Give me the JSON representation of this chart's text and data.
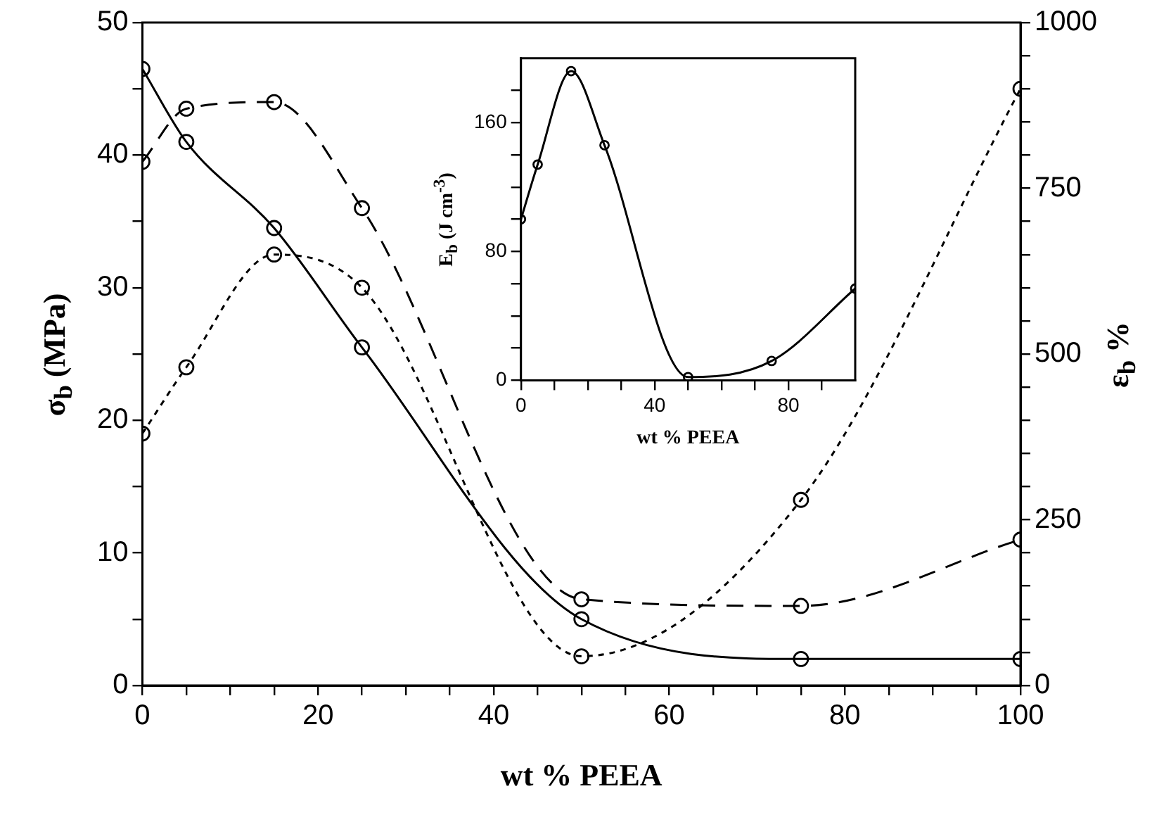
{
  "chart_data": [
    {
      "type": "line",
      "xlabel": "wt % PEEA",
      "ylabel": "σ$_{b}$ (MPa)",
      "y2label": "ε$_{b}$ %",
      "marker": "circle",
      "grid": false,
      "legend": false,
      "xlim": [
        0,
        100
      ],
      "xticks": [
        0,
        {
          "value": 5,
          "label": null
        },
        {
          "value": 10,
          "label": null
        },
        {
          "value": 15,
          "label": null
        },
        20,
        {
          "value": 25,
          "label": null
        },
        {
          "value": 30,
          "label": null
        },
        {
          "value": 35,
          "label": null
        },
        40,
        {
          "value": 45,
          "label": null
        },
        {
          "value": 50,
          "label": null
        },
        {
          "value": 55,
          "label": null
        },
        60,
        {
          "value": 65,
          "label": null
        },
        {
          "value": 70,
          "label": null
        },
        {
          "value": 75,
          "label": null
        },
        80,
        {
          "value": 85,
          "label": null
        },
        {
          "value": 90,
          "label": null
        },
        {
          "value": 95,
          "label": null
        },
        100
      ],
      "ylim": [
        0,
        50
      ],
      "yticks": [
        0,
        {
          "value": 5,
          "label": null
        },
        10,
        {
          "value": 15,
          "label": null
        },
        20,
        {
          "value": 25,
          "label": null
        },
        30,
        {
          "value": 35,
          "label": null
        },
        40,
        {
          "value": 45,
          "label": null
        },
        50
      ],
      "y2lim": [
        0,
        1000
      ],
      "y2ticks": [
        0,
        {
          "value": 50,
          "label": null
        },
        {
          "value": 100,
          "label": null
        },
        {
          "value": 150,
          "label": null
        },
        {
          "value": 200,
          "label": null
        },
        250,
        {
          "value": 300,
          "label": null
        },
        {
          "value": 350,
          "label": null
        },
        {
          "value": 400,
          "label": null
        },
        {
          "value": 450,
          "label": null
        },
        500,
        {
          "value": 550,
          "label": null
        },
        {
          "value": 600,
          "label": null
        },
        {
          "value": 650,
          "label": null
        },
        {
          "value": 700,
          "label": null
        },
        750,
        {
          "value": 800,
          "label": null
        },
        {
          "value": 850,
          "label": null
        },
        {
          "value": 900,
          "label": null
        },
        {
          "value": 950,
          "label": null
        },
        1000
      ],
      "x": [
        0,
        5,
        15,
        25,
        50,
        75,
        100
      ],
      "series": [
        {
          "color": "#000000",
          "line_style": "solid",
          "values": [
            46.5,
            41,
            34.5,
            25.5,
            5,
            2,
            2
          ]
        },
        {
          "color": "#000000",
          "line_style": "dashed",
          "values": [
            39.5,
            43.5,
            44,
            36,
            6.5,
            6,
            11
          ]
        },
        {
          "color": "#000000",
          "line_style": "dotted",
          "axis": "y2",
          "values": [
            380,
            480,
            650,
            600,
            44,
            280,
            900
          ]
        }
      ]
    },
    {
      "type": "line",
      "xlabel": "wt % PEEA",
      "ylabel": "E$_{b}$ (J cm$^{-3}$)",
      "marker": "circle",
      "grid": false,
      "legend": false,
      "xlim": [
        0,
        100
      ],
      "xticks": [
        0,
        {
          "value": 10,
          "label": null
        },
        {
          "value": 20,
          "label": null
        },
        {
          "value": 30,
          "label": null
        },
        40,
        {
          "value": 50,
          "label": null
        },
        {
          "value": 60,
          "label": null
        },
        {
          "value": 70,
          "label": null
        },
        80,
        {
          "value": 90,
          "label": null
        }
      ],
      "ylim": [
        0,
        200
      ],
      "yticks": [
        0,
        {
          "value": 20,
          "label": null
        },
        {
          "value": 40,
          "label": null
        },
        {
          "value": 60,
          "label": null
        },
        80,
        {
          "value": 100,
          "label": null
        },
        {
          "value": 120,
          "label": null
        },
        {
          "value": 140,
          "label": null
        },
        160,
        {
          "value": 180,
          "label": null
        }
      ],
      "x": [
        0,
        5,
        15,
        25,
        50,
        75,
        100
      ],
      "series": [
        {
          "color": "#000000",
          "line_style": "solid",
          "values": [
            100,
            134,
            192,
            146,
            2,
            12,
            57
          ]
        }
      ]
    }
  ]
}
